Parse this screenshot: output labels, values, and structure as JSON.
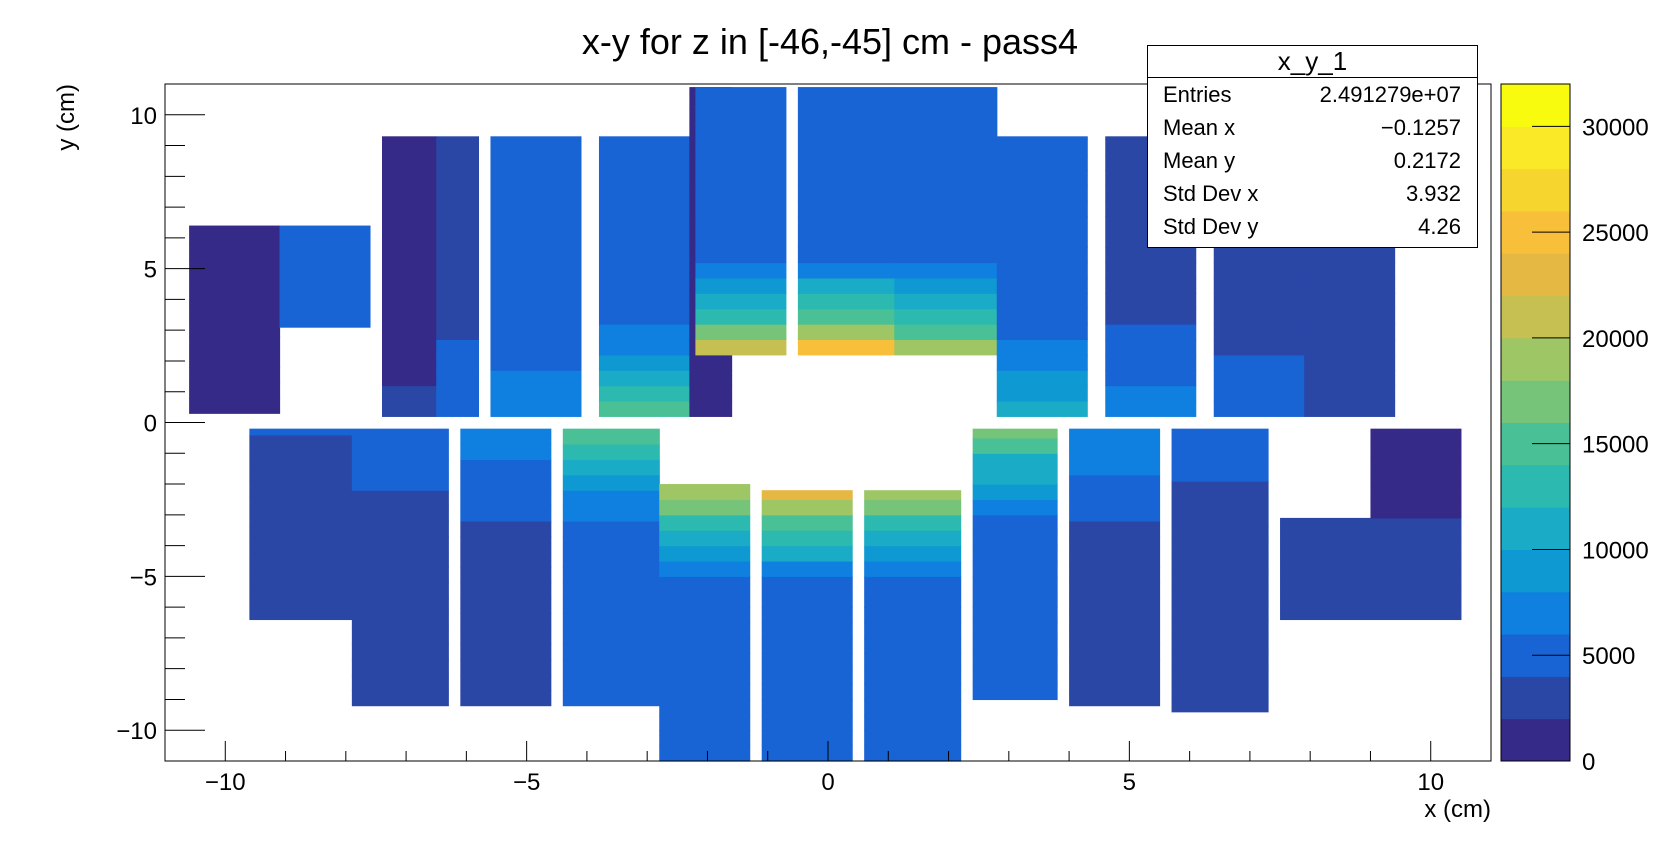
{
  "chart_data": {
    "type": "heatmap",
    "title": "x-y for z in [-46,-45] cm - pass4",
    "xlabel": "x (cm)",
    "ylabel": "y (cm)",
    "xlim": [
      -11,
      11
    ],
    "ylim": [
      -11,
      11
    ],
    "zlim": [
      0,
      32000
    ],
    "x_ticks": [
      "−10",
      "−5",
      "0",
      "5",
      "10"
    ],
    "x_tick_values": [
      -10,
      -5,
      0,
      5,
      10
    ],
    "y_ticks": [
      "10",
      "5",
      "0",
      "−5",
      "−10"
    ],
    "y_tick_values": [
      10,
      5,
      0,
      -5,
      -10
    ],
    "colorbar_ticks": [
      "0",
      "5000",
      "10000",
      "15000",
      "20000",
      "25000",
      "30000"
    ],
    "colorbar_tick_values": [
      0,
      5000,
      10000,
      15000,
      20000,
      25000,
      30000
    ],
    "colormap": [
      "#352a87",
      "#2a47a6",
      "#1864d5",
      "#0f7fe0",
      "#0f99d2",
      "#1aabc6",
      "#2bb9b0",
      "#49c095",
      "#76c47a",
      "#9ec665",
      "#c6c052",
      "#e5b844",
      "#f8bf3a",
      "#f7d52f",
      "#f9e926",
      "#f9fb0e"
    ],
    "modules": [
      {
        "x": [
          -10.6,
          -9.1
        ],
        "y": [
          0.3,
          6.4
        ],
        "top": [
          -9.1,
          -7.6
        ],
        "z_near": 2000,
        "z_far": 1500
      },
      {
        "x": [
          -9.1,
          -7.6
        ],
        "y": [
          3.1,
          6.4
        ],
        "z_near": 5500,
        "z_far": 4500
      },
      {
        "x": [
          -7.4,
          -6.5
        ],
        "y": [
          0.2,
          9.3
        ],
        "z_near": 2500,
        "z_far": 1500
      },
      {
        "x": [
          -6.5,
          -5.8
        ],
        "y": [
          0.2,
          9.3
        ],
        "z_near": 6000,
        "z_far": 3500
      },
      {
        "x": [
          -5.6,
          -4.1
        ],
        "y": [
          0.2,
          9.3
        ],
        "z_near": 8000,
        "z_far": 4500
      },
      {
        "x": [
          -3.8,
          -2.3
        ],
        "y": [
          0.2,
          9.3
        ],
        "z_near": 17000,
        "z_far": 5000
      },
      {
        "x": [
          -2.3,
          -1.6
        ],
        "y": [
          0.2,
          10.9
        ],
        "z_near": 2000,
        "z_far": 1500
      },
      {
        "x": [
          -2.2,
          -0.7
        ],
        "y": [
          2.2,
          10.9
        ],
        "z_near": 25000,
        "z_far": 4500
      },
      {
        "x": [
          -0.5,
          1.1
        ],
        "y": [
          2.2,
          10.9
        ],
        "z_near": 30000,
        "z_far": 4000
      },
      {
        "x": [
          1.1,
          2.8
        ],
        "y": [
          2.2,
          10.9
        ],
        "z_near": 23000,
        "z_far": 4500
      },
      {
        "x": [
          2.8,
          4.3
        ],
        "y": [
          0.2,
          9.3
        ],
        "z_near": 13000,
        "z_far": 4500
      },
      {
        "x": [
          4.6,
          6.1
        ],
        "y": [
          0.2,
          9.3
        ],
        "z_near": 8000,
        "z_far": 3500
      },
      {
        "x": [
          6.4,
          7.9
        ],
        "y": [
          0.2,
          9.3
        ],
        "z_near": 6000,
        "z_far": 3000
      },
      {
        "x": [
          7.9,
          9.4
        ],
        "y": [
          0.2,
          6.4
        ],
        "z_near": 3500,
        "z_far": 2000
      },
      {
        "x": [
          -9.6,
          -7.9
        ],
        "y": [
          -6.4,
          -0.2
        ],
        "z_near": 4500,
        "z_far": 2500
      },
      {
        "x": [
          -7.9,
          -6.3
        ],
        "y": [
          -9.2,
          -0.2
        ],
        "z_near": 6000,
        "z_far": 3000
      },
      {
        "x": [
          -6.1,
          -4.6
        ],
        "y": [
          -9.2,
          -0.2
        ],
        "z_near": 8000,
        "z_far": 3500
      },
      {
        "x": [
          -4.4,
          -2.8
        ],
        "y": [
          -9.2,
          -0.2
        ],
        "z_near": 17000,
        "z_far": 4500
      },
      {
        "x": [
          -2.8,
          -1.3
        ],
        "y": [
          -11,
          -2.0
        ],
        "z_near": 24000,
        "z_far": 4000
      },
      {
        "x": [
          -1.1,
          0.4
        ],
        "y": [
          -11,
          -2.2
        ],
        "z_near": 27000,
        "z_far": 4000
      },
      {
        "x": [
          0.6,
          2.2
        ],
        "y": [
          -11,
          -2.2
        ],
        "z_near": 22000,
        "z_far": 4000
      },
      {
        "x": [
          2.4,
          3.8
        ],
        "y": [
          -9.0,
          -0.2
        ],
        "z_near": 19000,
        "z_far": 4500
      },
      {
        "x": [
          4.0,
          5.5
        ],
        "y": [
          -9.2,
          -0.2
        ],
        "z_near": 9000,
        "z_far": 3500
      },
      {
        "x": [
          5.7,
          7.3
        ],
        "y": [
          -9.4,
          -0.2
        ],
        "z_near": 5500,
        "z_far": 3000
      },
      {
        "x": [
          7.5,
          10.5
        ],
        "y": [
          -6.4,
          -3.1
        ],
        "z_near": 3500,
        "z_far": 2000
      },
      {
        "x": [
          9.0,
          10.5
        ],
        "y": [
          -3.1,
          -0.2
        ],
        "z_near": 1500,
        "z_far": 1500
      }
    ]
  },
  "stats": {
    "title": "x_y_1",
    "rows": [
      {
        "label": "Entries",
        "value": "2.491279e+07"
      },
      {
        "label": "Mean x",
        "value": "−0.1257"
      },
      {
        "label": "Mean y",
        "value": "0.2172"
      },
      {
        "label": "Std Dev x",
        "value": "3.932"
      },
      {
        "label": "Std Dev y",
        "value": "4.26"
      }
    ]
  }
}
